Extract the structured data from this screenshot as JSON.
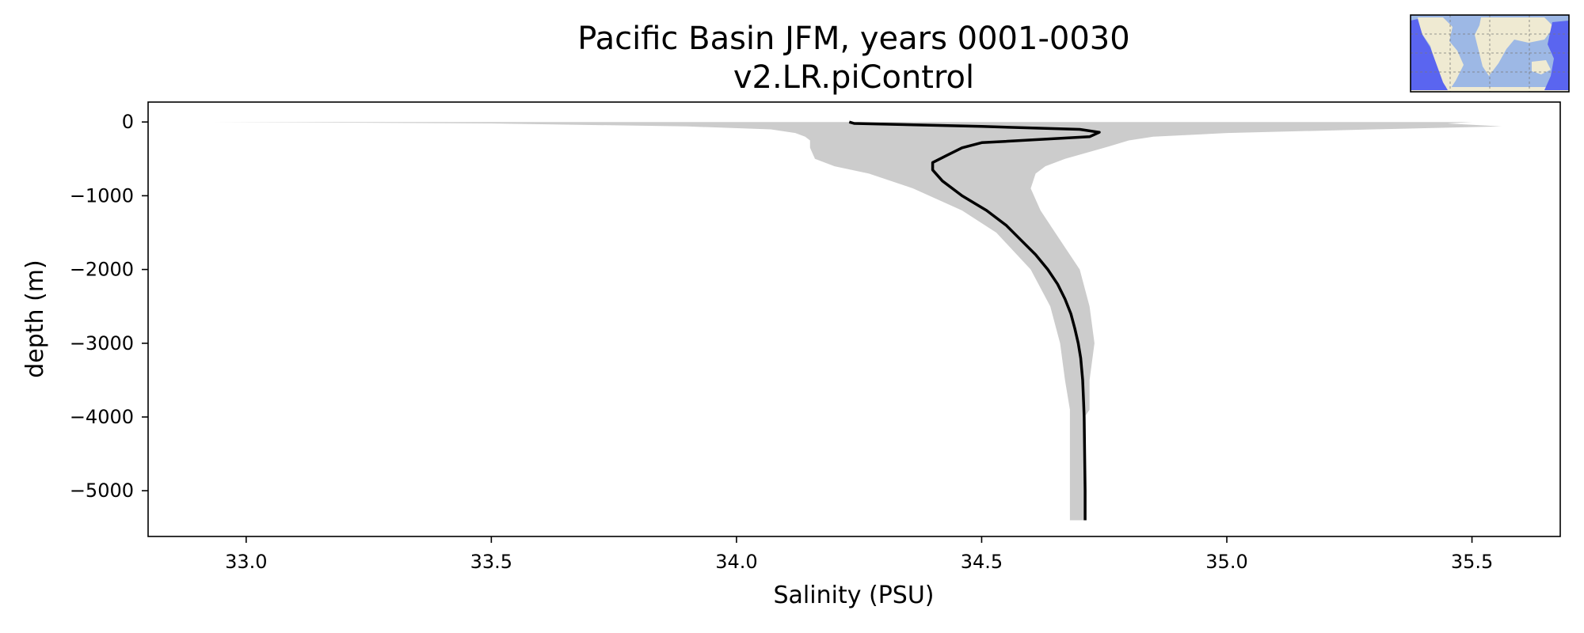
{
  "chart_data": {
    "type": "line",
    "title": "Pacific Basin JFM, years 0001-0030",
    "subtitle": "v2.LR.piControl",
    "xlabel": "Salinity (PSU)",
    "ylabel": "depth (m)",
    "xlim": [
      32.8,
      35.68
    ],
    "ylim": [
      -5620,
      270
    ],
    "xticks": [
      33.0,
      33.5,
      34.0,
      34.5,
      35.0,
      35.5
    ],
    "xtick_labels": [
      "33.0",
      "33.5",
      "34.0",
      "34.5",
      "35.0",
      "35.5"
    ],
    "yticks": [
      0,
      -1000,
      -2000,
      -3000,
      -4000,
      -5000
    ],
    "ytick_labels": [
      "0",
      "−1000",
      "−2000",
      "−3000",
      "−4000",
      "−5000"
    ],
    "grid": false,
    "colors": {
      "mean_line": "#000000",
      "range_fill": "#cccccc"
    },
    "series": [
      {
        "kind": "line",
        "depth": [
          0,
          -20,
          -60,
          -100,
          -140,
          -200,
          -280,
          -350,
          -450,
          -550,
          -650,
          -800,
          -1000,
          -1200,
          -1400,
          -1600,
          -1800,
          -2000,
          -2200,
          -2400,
          -2600,
          -2800,
          -3000,
          -3200,
          -3500,
          -3800,
          -4000,
          -4500,
          -5000,
          -5400
        ],
        "salinity": [
          34.23,
          34.24,
          34.5,
          34.7,
          34.74,
          34.72,
          34.5,
          34.46,
          34.43,
          34.4,
          34.4,
          34.42,
          34.46,
          34.51,
          34.55,
          34.58,
          34.61,
          34.635,
          34.655,
          34.67,
          34.682,
          34.69,
          34.697,
          34.702,
          34.706,
          34.708,
          34.709,
          34.71,
          34.711,
          34.711
        ]
      },
      {
        "kind": "band",
        "depth": [
          0,
          -20,
          -60,
          -100,
          -150,
          -200,
          -250,
          -350,
          -500,
          -600,
          -700,
          -900,
          -1200,
          -1500,
          -2000,
          -2500,
          -3000,
          -3500,
          -3900,
          -4000,
          -4500,
          -5000,
          -5400
        ],
        "min": [
          32.93,
          33.5,
          33.9,
          34.07,
          34.12,
          34.14,
          34.15,
          34.15,
          34.16,
          34.2,
          34.27,
          34.36,
          34.46,
          34.53,
          34.6,
          34.64,
          34.66,
          34.67,
          34.68,
          34.68,
          34.68,
          34.68,
          34.68
        ],
        "max": [
          35.5,
          35.45,
          35.56,
          35.3,
          35.0,
          34.85,
          34.8,
          34.75,
          34.67,
          34.63,
          34.61,
          34.6,
          34.62,
          34.65,
          34.7,
          34.72,
          34.73,
          34.72,
          34.72,
          34.71,
          34.71,
          34.71,
          34.71
        ]
      }
    ]
  },
  "inset_map": {
    "label": "map-inset",
    "colors": {
      "ocean": "#9db8e5",
      "land": "#efead2",
      "basin_highlight": "#5a65f0",
      "border": "#1a237e"
    }
  }
}
